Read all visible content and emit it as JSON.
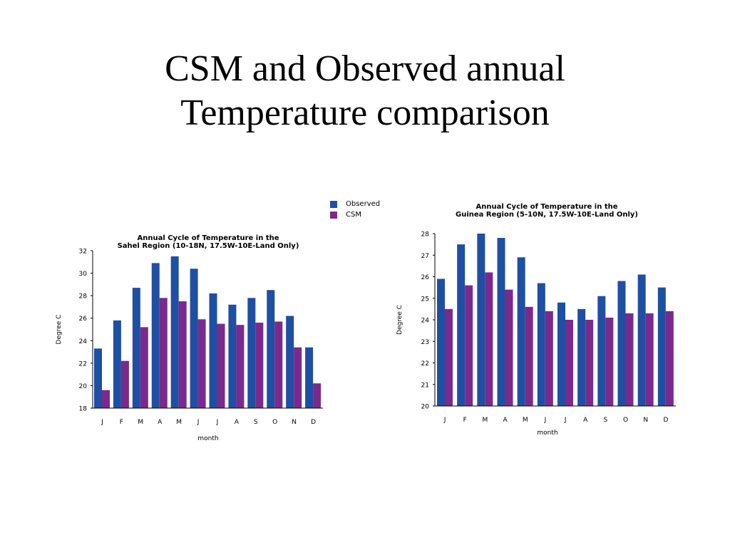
{
  "slide": {
    "title_line1": "CSM and Observed annual",
    "title_line2": "Temperature comparison"
  },
  "legend": {
    "observed": "Observed",
    "csm": "CSM"
  },
  "colors": {
    "observed": "#1f4fa3",
    "csm": "#7a2a8c"
  },
  "chart_data": [
    {
      "type": "bar",
      "title": "Annual Cycle of Temperature in the",
      "subtitle": "Sahel Region (10-18N, 17.5W-10E-Land Only)",
      "xlabel": "month",
      "ylabel": "Degree C",
      "ylim": [
        18,
        32
      ],
      "yticks": [
        18,
        20,
        22,
        24,
        26,
        28,
        30,
        32
      ],
      "categories": [
        "J",
        "F",
        "M",
        "A",
        "M",
        "J",
        "J",
        "A",
        "S",
        "O",
        "N",
        "D"
      ],
      "series": [
        {
          "name": "Observed",
          "values": [
            23.3,
            25.8,
            28.7,
            30.9,
            31.5,
            30.4,
            28.2,
            27.2,
            27.8,
            28.5,
            26.2,
            23.4
          ]
        },
        {
          "name": "CSM",
          "values": [
            19.6,
            22.2,
            25.2,
            27.8,
            27.5,
            25.9,
            25.5,
            25.4,
            25.6,
            25.7,
            23.4,
            20.2
          ]
        }
      ]
    },
    {
      "type": "bar",
      "title": "Annual Cycle of Temperature in the",
      "subtitle": "Guinea Region (5-10N, 17.5W-10E-Land Only)",
      "xlabel": "month",
      "ylabel": "Degree C",
      "ylim": [
        20,
        28
      ],
      "yticks": [
        20,
        21,
        22,
        23,
        24,
        25,
        26,
        27,
        28
      ],
      "categories": [
        "J",
        "F",
        "M",
        "A",
        "M",
        "J",
        "J",
        "A",
        "S",
        "O",
        "N",
        "D"
      ],
      "series": [
        {
          "name": "Observed",
          "values": [
            25.9,
            27.5,
            28.0,
            27.8,
            26.9,
            25.7,
            24.8,
            24.5,
            25.1,
            25.8,
            26.1,
            25.5
          ]
        },
        {
          "name": "CSM",
          "values": [
            24.5,
            25.6,
            26.2,
            25.4,
            24.6,
            24.4,
            24.0,
            24.0,
            24.1,
            24.3,
            24.3,
            24.4
          ]
        }
      ]
    }
  ]
}
